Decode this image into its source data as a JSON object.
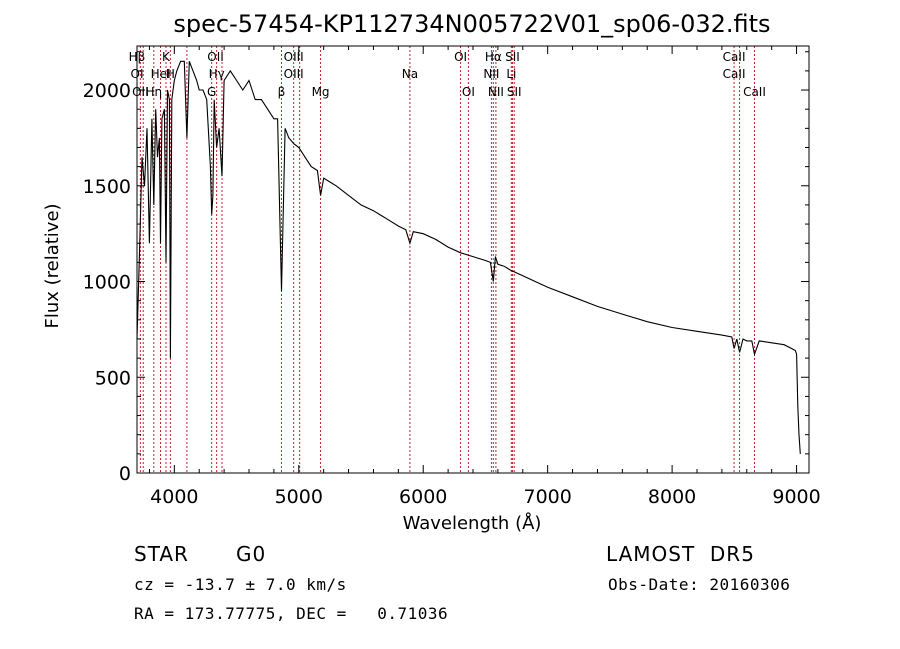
{
  "chart_data": {
    "type": "line",
    "title": "spec-57454-KP112734N005722V01_sp06-032.fits",
    "xlabel": "Wavelength (Å)",
    "ylabel": "Flux (relative)",
    "xlim": [
      3700,
      9100
    ],
    "ylim": [
      0,
      2230
    ],
    "x_ticks": [
      4000,
      5000,
      6000,
      7000,
      8000,
      9000
    ],
    "y_ticks": [
      0,
      500,
      1000,
      1500,
      2000
    ],
    "grid": false,
    "series": [
      {
        "x": [
          3700,
          3720,
          3740,
          3760,
          3780,
          3800,
          3820,
          3835,
          3850,
          3865,
          3880,
          3889,
          3900,
          3920,
          3933,
          3945,
          3960,
          3968,
          3980,
          4000,
          4020,
          4050,
          4080,
          4101,
          4120,
          4150,
          4180,
          4200,
          4230,
          4260,
          4290,
          4300,
          4310,
          4320,
          4340,
          4360,
          4383,
          4400,
          4450,
          4500,
          4550,
          4600,
          4650,
          4700,
          4750,
          4800,
          4830,
          4861,
          4890,
          4920,
          4960,
          5000,
          5050,
          5100,
          5150,
          5175,
          5200,
          5250,
          5300,
          5400,
          5500,
          5600,
          5700,
          5800,
          5860,
          5893,
          5920,
          6000,
          6100,
          6200,
          6300,
          6400,
          6500,
          6540,
          6563,
          6580,
          6600,
          6650,
          6700,
          6800,
          6900,
          7000,
          7200,
          7400,
          7600,
          7800,
          8000,
          8200,
          8400,
          8480,
          8498,
          8520,
          8542,
          8570,
          8600,
          8640,
          8662,
          8700,
          8800,
          8900,
          8960,
          8990,
          9000,
          9010,
          9020,
          9030
        ],
        "y": [
          700,
          1150,
          1650,
          1500,
          1800,
          1200,
          1850,
          1400,
          1900,
          1650,
          1750,
          1200,
          1850,
          1900,
          1100,
          2000,
          1950,
          600,
          1950,
          2050,
          2100,
          2150,
          2150,
          1750,
          2150,
          2100,
          2050,
          2000,
          2000,
          1950,
          1600,
          1350,
          1450,
          1950,
          1700,
          1800,
          1550,
          2050,
          2100,
          2050,
          2000,
          2050,
          1950,
          1950,
          1900,
          1850,
          1850,
          950,
          1800,
          1750,
          1720,
          1700,
          1650,
          1600,
          1580,
          1450,
          1540,
          1520,
          1500,
          1450,
          1400,
          1370,
          1330,
          1290,
          1270,
          1200,
          1260,
          1250,
          1220,
          1180,
          1150,
          1130,
          1110,
          1100,
          1000,
          1130,
          1090,
          1080,
          1060,
          1030,
          1000,
          970,
          920,
          870,
          830,
          790,
          760,
          740,
          720,
          710,
          650,
          700,
          630,
          700,
          690,
          690,
          620,
          690,
          680,
          670,
          650,
          640,
          620,
          350,
          200,
          100
        ]
      }
    ],
    "line_labels": [
      {
        "text": "Hβ",
        "x": 3700,
        "row": 0
      },
      {
        "text": "K",
        "x": 3933,
        "row": 0
      },
      {
        "text": "OII",
        "x": 4331,
        "row": 0
      },
      {
        "text": "OIII",
        "x": 4959,
        "row": 0
      },
      {
        "text": "OI",
        "x": 6300,
        "row": 0
      },
      {
        "text": "Hα",
        "x": 6563,
        "row": 0
      },
      {
        "text": "SII",
        "x": 6717,
        "row": 0
      },
      {
        "text": "CaII",
        "x": 8498,
        "row": 0
      },
      {
        "text": "OI",
        "x": 3700,
        "row": 1
      },
      {
        "text": "HeI",
        "x": 3890,
        "row": 1
      },
      {
        "text": "H",
        "x": 3968,
        "row": 1
      },
      {
        "text": "Hγ",
        "x": 4340,
        "row": 1
      },
      {
        "text": "OIII",
        "x": 4959,
        "row": 1
      },
      {
        "text": "Na",
        "x": 5893,
        "row": 1
      },
      {
        "text": "NII",
        "x": 6548,
        "row": 1
      },
      {
        "text": "Li",
        "x": 6708,
        "row": 1
      },
      {
        "text": "CaII",
        "x": 8498,
        "row": 1
      },
      {
        "text": "OII",
        "x": 3727,
        "row": 2
      },
      {
        "text": "Hη",
        "x": 3835,
        "row": 2
      },
      {
        "text": "G",
        "x": 4300,
        "row": 2
      },
      {
        "text": "β",
        "x": 4861,
        "row": 2
      },
      {
        "text": "Mg",
        "x": 5175,
        "row": 2
      },
      {
        "text": "OI",
        "x": 6363,
        "row": 2
      },
      {
        "text": "NII",
        "x": 6584,
        "row": 2
      },
      {
        "text": "SII",
        "x": 6731,
        "row": 2
      },
      {
        "text": "CaII",
        "x": 8662,
        "row": 2
      }
    ],
    "line_markers": [
      3727,
      3750,
      3835,
      3889,
      3933,
      3968,
      4101,
      4300,
      4340,
      4383,
      4861,
      4959,
      5007,
      5175,
      5893,
      6300,
      6363,
      6548,
      6563,
      6584,
      6708,
      6717,
      6731,
      8498,
      8542,
      8662
    ],
    "colors": {
      "spectrum": "#000000",
      "markers": "#c81e1e",
      "axes": "#000000"
    }
  },
  "info": {
    "object_class": "STAR",
    "subclass": "G0",
    "survey": "LAMOST  DR5",
    "redshift": "cz = -13.7 ± 7.0 km/s",
    "obs_date": "Obs-Date: 20160306",
    "coords": "RA = 173.77775, DEC =   0.71036"
  }
}
